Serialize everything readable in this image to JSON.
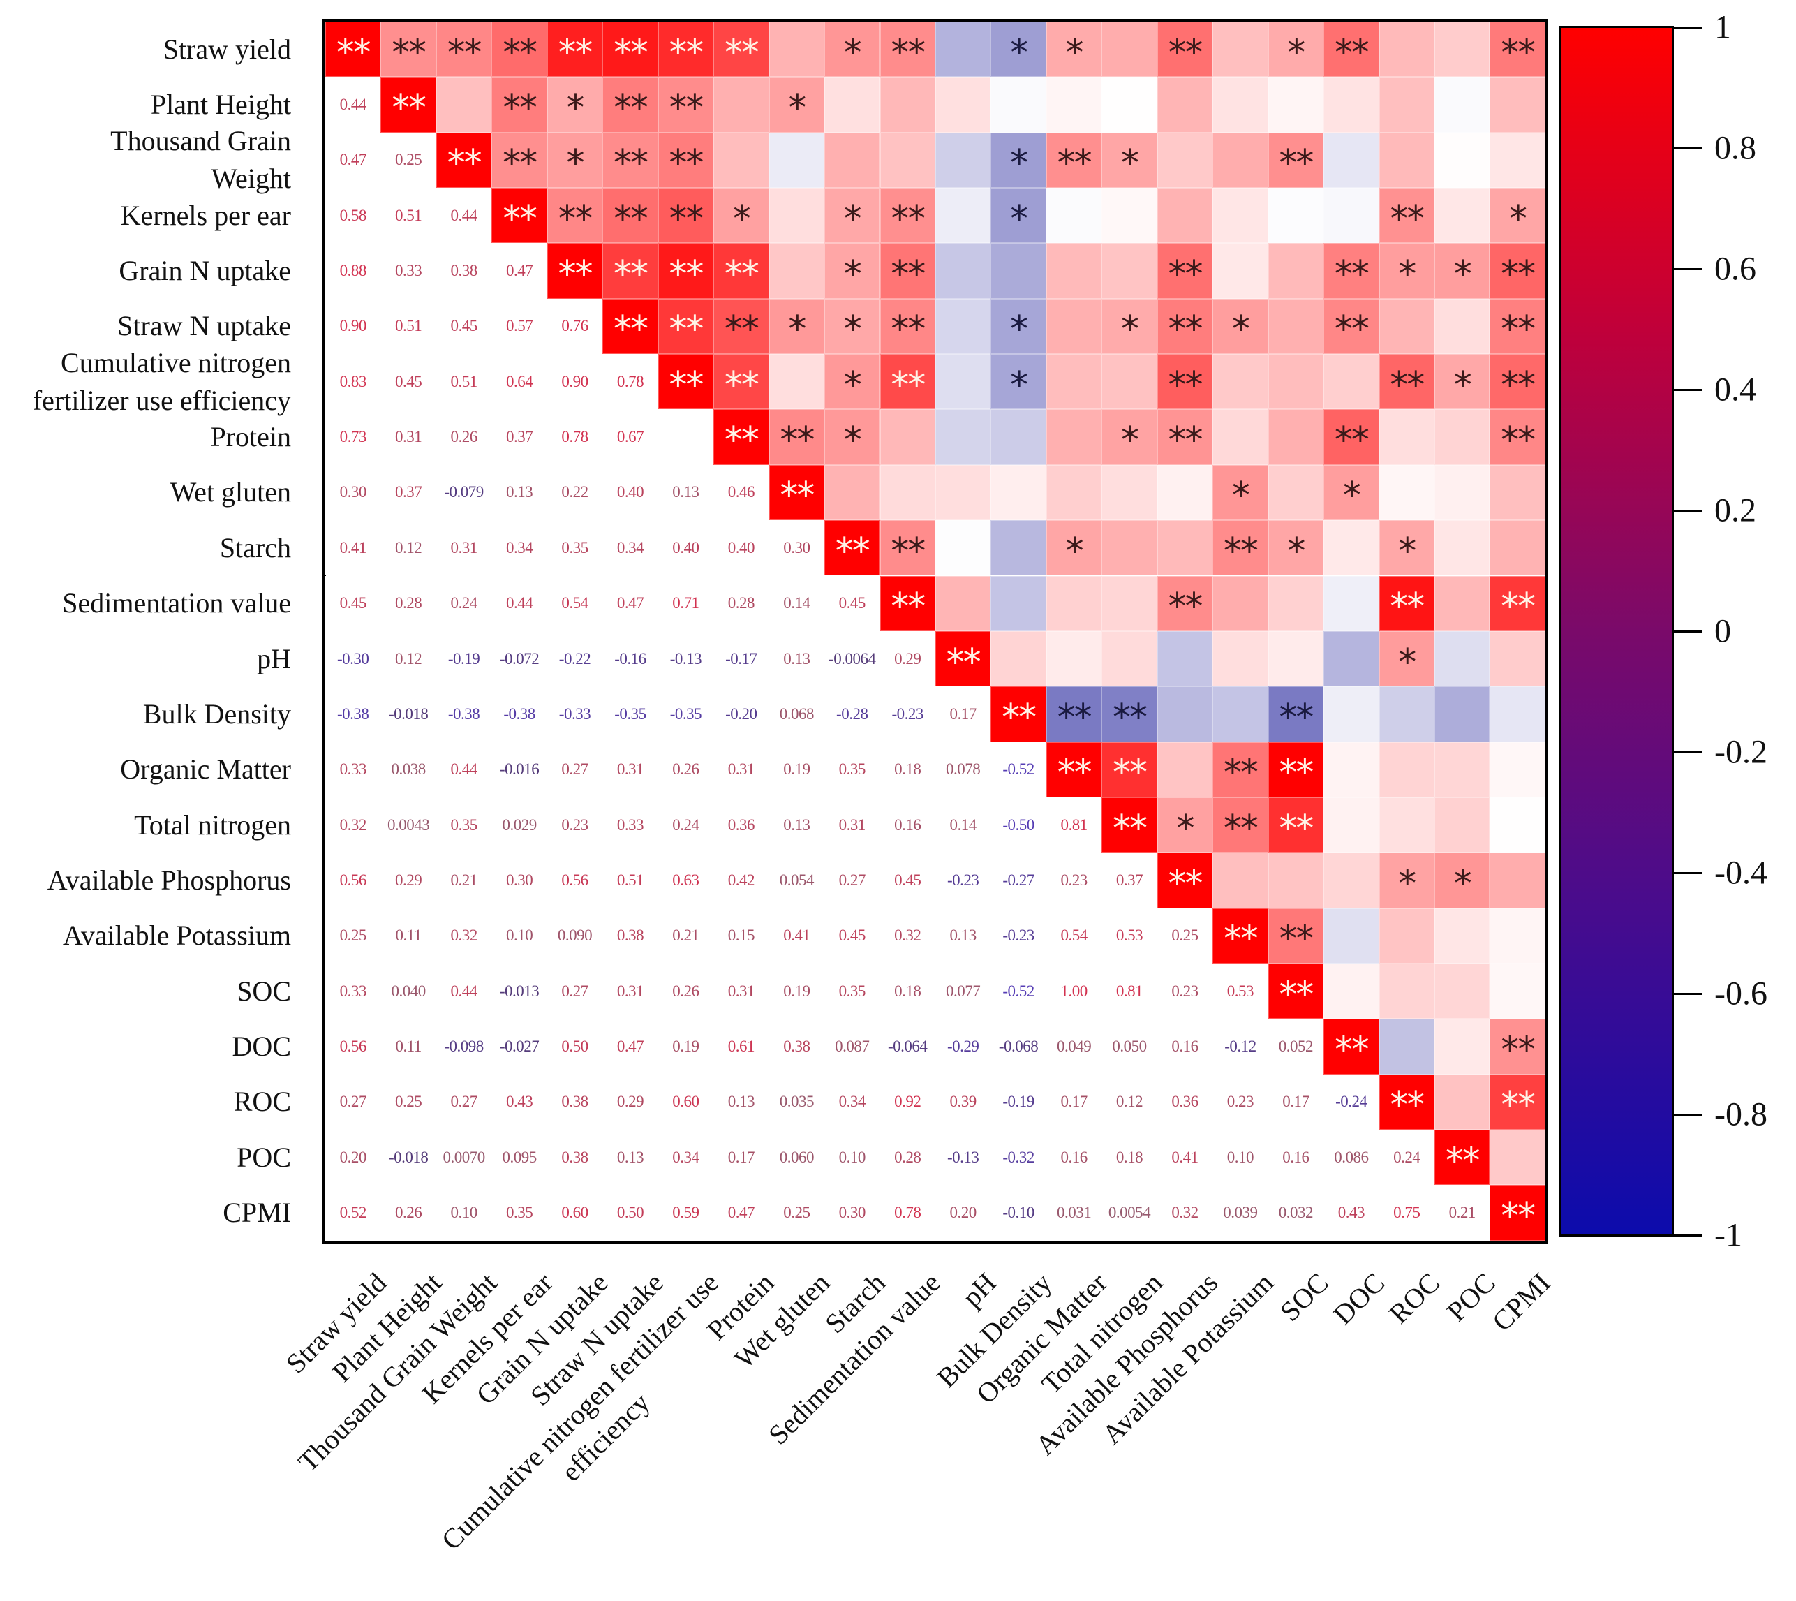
{
  "chart_data": {
    "type": "heatmap",
    "title": "",
    "variables": [
      "Straw yield",
      "Plant Height",
      "Thousand Grain Weight",
      "Kernels per ear",
      "Grain N uptake",
      "Straw N uptake",
      "Cumulative nitrogen fertilizer use efficiency",
      "Protein",
      "Wet gluten",
      "Starch",
      "Sedimentation value",
      "pH",
      "Bulk Density",
      "Organic Matter",
      "Total nitrogen",
      "Available Phosphorus",
      "Available Potassium",
      "SOC",
      "DOC",
      "ROC",
      "POC",
      "CPMI"
    ],
    "row_labels": [
      [
        "Straw yield"
      ],
      [
        "Plant Height"
      ],
      [
        "Thousand Grain",
        "Weight"
      ],
      [
        "Kernels per ear"
      ],
      [
        "Grain N uptake"
      ],
      [
        "Straw N uptake"
      ],
      [
        "Cumulative nitrogen",
        "fertilizer use efficiency"
      ],
      [
        "Protein"
      ],
      [
        "Wet gluten"
      ],
      [
        "Starch"
      ],
      [
        "Sedimentation value"
      ],
      [
        "pH"
      ],
      [
        "Bulk Density"
      ],
      [
        "Organic Matter"
      ],
      [
        "Total nitrogen"
      ],
      [
        "Available Phosphorus"
      ],
      [
        "Available Potassium"
      ],
      [
        "SOC"
      ],
      [
        "DOC"
      ],
      [
        "ROC"
      ],
      [
        "POC"
      ],
      [
        "CPMI"
      ]
    ],
    "col_labels": [
      [
        "Straw yield"
      ],
      [
        "Plant Height"
      ],
      [
        "Thousand Grain Weight"
      ],
      [
        "Kernels per ear"
      ],
      [
        "Grain N uptake"
      ],
      [
        "Straw N uptake"
      ],
      [
        "Cumulative nitrogen fertilizer use",
        "efficiency"
      ],
      [
        "Protein"
      ],
      [
        "Wet gluten"
      ],
      [
        "Starch"
      ],
      [
        "Sedimentation value"
      ],
      [
        "pH"
      ],
      [
        "Bulk Density"
      ],
      [
        "Organic Matter"
      ],
      [
        "Total nitrogen"
      ],
      [
        "Available Phosphorus"
      ],
      [
        "Available Potassium"
      ],
      [
        "SOC"
      ],
      [
        "DOC"
      ],
      [
        "ROC"
      ],
      [
        "POC"
      ],
      [
        "CPMI"
      ]
    ],
    "lower_triangle": [
      [],
      [
        "0.44"
      ],
      [
        "0.47",
        "0.25"
      ],
      [
        "0.58",
        "0.51",
        "0.44"
      ],
      [
        "0.88",
        "0.33",
        "0.38",
        "0.47"
      ],
      [
        "0.90",
        "0.51",
        "0.45",
        "0.57",
        "0.76"
      ],
      [
        "0.83",
        "0.45",
        "0.51",
        "0.64",
        "0.90",
        "0.78"
      ],
      [
        "0.73",
        "0.31",
        "0.26",
        "0.37",
        "0.78",
        "0.67",
        null
      ],
      [
        "0.30",
        "0.37",
        "-0.079",
        "0.13",
        "0.22",
        "0.40",
        "0.13",
        "0.46"
      ],
      [
        "0.41",
        "0.12",
        "0.31",
        "0.34",
        "0.35",
        "0.34",
        "0.40",
        "0.40",
        "0.30"
      ],
      [
        "0.45",
        "0.28",
        "0.24",
        "0.44",
        "0.54",
        "0.47",
        "0.71",
        "0.28",
        "0.14",
        "0.45"
      ],
      [
        "-0.30",
        "0.12",
        "-0.19",
        "-0.072",
        "-0.22",
        "-0.16",
        "-0.13",
        "-0.17",
        "0.13",
        "-0.0064",
        "0.29"
      ],
      [
        "-0.38",
        "-0.018",
        "-0.38",
        "-0.38",
        "-0.33",
        "-0.35",
        "-0.35",
        "-0.20",
        "0.068",
        "-0.28",
        "-0.23",
        "0.17"
      ],
      [
        "0.33",
        "0.038",
        "0.44",
        "-0.016",
        "0.27",
        "0.31",
        "0.26",
        "0.31",
        "0.19",
        "0.35",
        "0.18",
        "0.078",
        "-0.52"
      ],
      [
        "0.32",
        "0.0043",
        "0.35",
        "0.029",
        "0.23",
        "0.33",
        "0.24",
        "0.36",
        "0.13",
        "0.31",
        "0.16",
        "0.14",
        "-0.50",
        "0.81"
      ],
      [
        "0.56",
        "0.29",
        "0.21",
        "0.30",
        "0.56",
        "0.51",
        "0.63",
        "0.42",
        "0.054",
        "0.27",
        "0.45",
        "-0.23",
        "-0.27",
        "0.23",
        "0.37"
      ],
      [
        "0.25",
        "0.11",
        "0.32",
        "0.10",
        "0.090",
        "0.38",
        "0.21",
        "0.15",
        "0.41",
        "0.45",
        "0.32",
        "0.13",
        "-0.23",
        "0.54",
        "0.53",
        "0.25"
      ],
      [
        "0.33",
        "0.040",
        "0.44",
        "-0.013",
        "0.27",
        "0.31",
        "0.26",
        "0.31",
        "0.19",
        "0.35",
        "0.18",
        "0.077",
        "-0.52",
        "1.00",
        "0.81",
        "0.23",
        "0.53"
      ],
      [
        "0.56",
        "0.11",
        "-0.098",
        "-0.027",
        "0.50",
        "0.47",
        "0.19",
        "0.61",
        "0.38",
        "0.087",
        "-0.064",
        "-0.29",
        "-0.068",
        "0.049",
        "0.050",
        "0.16",
        "-0.12",
        "0.052"
      ],
      [
        "0.27",
        "0.25",
        "0.27",
        "0.43",
        "0.38",
        "0.29",
        "0.60",
        "0.13",
        "0.035",
        "0.34",
        "0.92",
        "0.39",
        "-0.19",
        "0.17",
        "0.12",
        "0.36",
        "0.23",
        "0.17",
        "-0.24"
      ],
      [
        "0.20",
        "-0.018",
        "0.0070",
        "0.095",
        "0.38",
        "0.13",
        "0.34",
        "0.17",
        "0.060",
        "0.10",
        "0.28",
        "-0.13",
        "-0.32",
        "0.16",
        "0.18",
        "0.41",
        "0.10",
        "0.16",
        "0.086",
        "0.24"
      ],
      [
        "0.52",
        "0.26",
        "0.10",
        "0.35",
        "0.60",
        "0.50",
        "0.59",
        "0.47",
        "0.25",
        "0.30",
        "0.78",
        "0.20",
        "-0.10",
        "0.031",
        "0.0054",
        "0.32",
        "0.039",
        "0.032",
        "0.43",
        "0.75",
        "0.21"
      ]
    ],
    "significance_upper": [
      [
        "**",
        "**",
        "**",
        "**",
        "**",
        "**",
        "**",
        "**",
        "",
        "*",
        "**",
        "",
        "*",
        "*",
        "",
        "**",
        "",
        "*",
        "**",
        "",
        "",
        "**"
      ],
      [
        "**",
        "",
        "**",
        "*",
        "**",
        "**",
        "",
        "*",
        "",
        "",
        "",
        "",
        "",
        "",
        "",
        "",
        "",
        "",
        "",
        "",
        ""
      ],
      [
        "**",
        "**",
        "*",
        "**",
        "**",
        "",
        "",
        "",
        "",
        "",
        "*",
        "**",
        "*",
        "",
        "",
        "**",
        "",
        "",
        "",
        ""
      ],
      [
        "**",
        "**",
        "**",
        "**",
        "*",
        "",
        "*",
        "**",
        "",
        "*",
        "",
        "",
        "",
        "",
        "",
        "",
        "**",
        "",
        "*"
      ],
      [
        "**",
        "**",
        "**",
        "**",
        "",
        "*",
        "**",
        "",
        "",
        "",
        "",
        "**",
        "",
        "",
        "**",
        "*",
        "*",
        "**"
      ],
      [
        "**",
        "**",
        "**",
        "*",
        "*",
        "**",
        "",
        "*",
        "",
        "*",
        "**",
        "*",
        "",
        "**",
        "",
        "",
        "**"
      ],
      [
        "**",
        "**",
        "",
        "*",
        "**",
        "",
        "*",
        "",
        "",
        "**",
        "",
        "",
        "",
        "**",
        "*",
        "**"
      ],
      [
        "**",
        "**",
        "*",
        "",
        "",
        "",
        "",
        "*",
        "**",
        "",
        "",
        "**",
        "",
        "",
        "**"
      ],
      [
        "**",
        "",
        "",
        "",
        "",
        "",
        "",
        "",
        "*",
        "",
        "*",
        "",
        "",
        ""
      ],
      [
        "**",
        "**",
        "",
        "",
        "*",
        "",
        "",
        "**",
        "*",
        "",
        "*",
        "",
        ""
      ],
      [
        "**",
        "",
        "",
        "",
        "",
        "**",
        "",
        "",
        "",
        "**",
        "",
        "**"
      ],
      [
        "**",
        "",
        "",
        "",
        "",
        "",
        "",
        "",
        "*",
        "",
        ""
      ],
      [
        "**",
        "**",
        "**",
        "",
        "",
        "**",
        "",
        "",
        "",
        ""
      ],
      [
        "**",
        "**",
        "",
        "**",
        "**",
        "",
        "",
        "",
        ""
      ],
      [
        "**",
        "*",
        "**",
        "**",
        "",
        "",
        "",
        ""
      ],
      [
        "**",
        "",
        "",
        "",
        "*",
        "*",
        ""
      ],
      [
        "**",
        "**",
        "",
        "",
        "",
        ""
      ],
      [
        "**",
        "",
        "",
        "",
        ""
      ],
      [
        "**",
        "",
        "",
        "**"
      ],
      [
        "**",
        "",
        "**"
      ],
      [
        "**",
        ""
      ],
      [
        "**"
      ]
    ],
    "colorbar": {
      "range": [
        -1,
        1
      ],
      "ticks": [
        "1",
        "0.8",
        "0.6",
        "0.4",
        "0.2",
        "0",
        "-0.2",
        "-0.4",
        "-0.6",
        "-0.8",
        "-1"
      ],
      "tick_values": [
        1,
        0.8,
        0.6,
        0.4,
        0.2,
        0,
        -0.2,
        -0.4,
        -0.6,
        -0.8,
        -1
      ]
    },
    "colors": {
      "positive": "#ff0000",
      "zero": "#ffffff",
      "negative": "#0000a0"
    },
    "legend": "right"
  }
}
